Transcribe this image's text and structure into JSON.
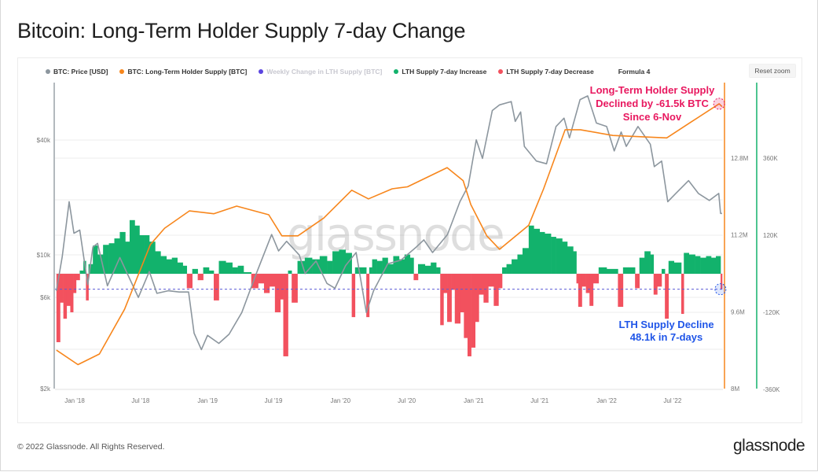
{
  "title": "Bitcoin: Long-Term Holder Supply 7-day Change",
  "legend": [
    {
      "label": "BTC: Price [USD]",
      "color": "#8c969e"
    },
    {
      "label": "BTC: Long-Term Holder Supply [BTC]",
      "color": "#f7861c"
    },
    {
      "label": "Weekly Change in LTH Supply [BTC]",
      "color": "#5b45e0",
      "hidden": true
    },
    {
      "label": "LTH Supply 7-day Increase",
      "color": "#12b26c"
    },
    {
      "label": "LTH Supply 7-day Decrease",
      "color": "#f2515e"
    },
    {
      "label": "Formula 4",
      "color": ""
    }
  ],
  "reset_zoom": "Reset zoom",
  "footer": "© 2022 Glassnode. All Rights Reserved.",
  "logo": "glassnode",
  "watermark": "glassnode",
  "chart_data": {
    "type": "line",
    "title": "Bitcoin: Long-Term Holder Supply 7-day Change",
    "x_ticks": [
      "Jan '18",
      "Jul '18",
      "Jan '19",
      "Jul '19",
      "Jan '20",
      "Jul '20",
      "Jan '21",
      "Jul '21",
      "Jan '22",
      "Jul '22"
    ],
    "x_tick_dates": [
      "2018-01-01",
      "2018-07-01",
      "2019-01-01",
      "2019-07-01",
      "2020-01-01",
      "2020-07-01",
      "2021-01-01",
      "2021-07-01",
      "2022-01-01",
      "2022-07-01"
    ],
    "xlim": [
      "2017-11-12",
      "2022-11-14"
    ],
    "y_price": {
      "scale": "log",
      "ticks": [
        "$2k",
        "$6k",
        "$10k",
        "$40k"
      ],
      "tick_values": [
        2000,
        6000,
        10000,
        40000
      ]
    },
    "y_supply": {
      "ticks": [
        "8M",
        "9.6M",
        "11.2M",
        "12.8M"
      ],
      "tick_values": [
        8,
        9.6,
        11.2,
        12.8
      ],
      "unit": "M"
    },
    "y_change": {
      "ticks": [
        "-360K",
        "-120K",
        "120K",
        "360K"
      ],
      "tick_values": [
        -360,
        -120,
        120,
        360
      ],
      "unit": "K"
    },
    "grid": true,
    "legend_position": "top",
    "series": [
      {
        "name": "BTC: Price [USD]",
        "axis": "price",
        "color": "#8c969e",
        "points": [
          [
            "2017-11-12",
            6500
          ],
          [
            "2017-11-28",
            9800
          ],
          [
            "2017-12-17",
            19000
          ],
          [
            "2017-12-30",
            13000
          ],
          [
            "2018-01-15",
            13500
          ],
          [
            "2018-02-06",
            7000
          ],
          [
            "2018-02-20",
            11000
          ],
          [
            "2018-03-05",
            11500
          ],
          [
            "2018-04-01",
            6900
          ],
          [
            "2018-05-05",
            9700
          ],
          [
            "2018-06-25",
            6000
          ],
          [
            "2018-07-25",
            8200
          ],
          [
            "2018-08-15",
            6300
          ],
          [
            "2018-09-15",
            6500
          ],
          [
            "2018-10-15",
            6400
          ],
          [
            "2018-11-10",
            6400
          ],
          [
            "2018-11-25",
            3900
          ],
          [
            "2018-12-15",
            3200
          ],
          [
            "2019-01-01",
            3800
          ],
          [
            "2019-02-01",
            3450
          ],
          [
            "2019-03-01",
            3850
          ],
          [
            "2019-04-05",
            5000
          ],
          [
            "2019-05-15",
            8000
          ],
          [
            "2019-06-26",
            12800
          ],
          [
            "2019-07-15",
            10500
          ],
          [
            "2019-08-06",
            11800
          ],
          [
            "2019-09-10",
            10000
          ],
          [
            "2019-09-26",
            8000
          ],
          [
            "2019-10-26",
            9300
          ],
          [
            "2019-11-25",
            7100
          ],
          [
            "2019-12-17",
            6700
          ],
          [
            "2020-01-15",
            8800
          ],
          [
            "2020-02-13",
            10300
          ],
          [
            "2020-03-12",
            5000
          ],
          [
            "2020-04-01",
            6500
          ],
          [
            "2020-05-10",
            9000
          ],
          [
            "2020-06-15",
            9400
          ],
          [
            "2020-07-27",
            11000
          ],
          [
            "2020-08-17",
            12000
          ],
          [
            "2020-09-10",
            10300
          ],
          [
            "2020-10-21",
            12800
          ],
          [
            "2020-11-24",
            19000
          ],
          [
            "2020-12-17",
            23000
          ],
          [
            "2021-01-08",
            40000
          ],
          [
            "2021-01-25",
            32000
          ],
          [
            "2021-02-21",
            57000
          ],
          [
            "2021-03-13",
            61000
          ],
          [
            "2021-04-14",
            63500
          ],
          [
            "2021-04-25",
            50000
          ],
          [
            "2021-05-10",
            56000
          ],
          [
            "2021-05-20",
            37000
          ],
          [
            "2021-06-22",
            31000
          ],
          [
            "2021-07-20",
            30000
          ],
          [
            "2021-08-15",
            47000
          ],
          [
            "2021-09-06",
            52000
          ],
          [
            "2021-09-21",
            41000
          ],
          [
            "2021-10-20",
            65000
          ],
          [
            "2021-11-10",
            68000
          ],
          [
            "2021-12-04",
            49000
          ],
          [
            "2022-01-01",
            47000
          ],
          [
            "2022-01-22",
            35000
          ],
          [
            "2022-02-10",
            44000
          ],
          [
            "2022-02-24",
            37000
          ],
          [
            "2022-03-28",
            47000
          ],
          [
            "2022-05-01",
            38000
          ],
          [
            "2022-05-12",
            29000
          ],
          [
            "2022-06-01",
            31000
          ],
          [
            "2022-06-18",
            19000
          ],
          [
            "2022-07-10",
            21000
          ],
          [
            "2022-08-14",
            24500
          ],
          [
            "2022-09-10",
            21000
          ],
          [
            "2022-10-10",
            19300
          ],
          [
            "2022-11-05",
            21000
          ],
          [
            "2022-11-10",
            16500
          ],
          [
            "2022-11-14",
            16500
          ]
        ]
      },
      {
        "name": "BTC: Long-Term Holder Supply [BTC]",
        "axis": "supply",
        "unit": "M",
        "color": "#f7861c",
        "points": [
          [
            "2017-11-12",
            8.8
          ],
          [
            "2018-01-10",
            8.5
          ],
          [
            "2018-03-10",
            8.72
          ],
          [
            "2018-05-18",
            9.65
          ],
          [
            "2018-07-28",
            11.0
          ],
          [
            "2018-09-05",
            11.34
          ],
          [
            "2018-11-12",
            11.7
          ],
          [
            "2019-01-18",
            11.64
          ],
          [
            "2019-03-22",
            11.8
          ],
          [
            "2019-06-18",
            11.62
          ],
          [
            "2019-07-24",
            11.18
          ],
          [
            "2019-09-06",
            11.18
          ],
          [
            "2019-11-16",
            11.55
          ],
          [
            "2020-02-01",
            12.13
          ],
          [
            "2020-03-18",
            11.95
          ],
          [
            "2020-05-22",
            12.16
          ],
          [
            "2020-07-03",
            12.2
          ],
          [
            "2020-10-20",
            12.6
          ],
          [
            "2020-12-03",
            12.33
          ],
          [
            "2020-12-24",
            11.83
          ],
          [
            "2021-02-06",
            11.18
          ],
          [
            "2021-03-13",
            10.9
          ],
          [
            "2021-06-01",
            11.4
          ],
          [
            "2021-07-12",
            12.16
          ],
          [
            "2021-09-09",
            13.39
          ],
          [
            "2021-10-21",
            13.39
          ],
          [
            "2022-01-18",
            13.27
          ],
          [
            "2022-06-15",
            13.22
          ],
          [
            "2022-08-21",
            13.55
          ],
          [
            "2022-11-06",
            13.93
          ],
          [
            "2022-11-14",
            13.87
          ]
        ]
      },
      {
        "name": "Weekly Change in LTH Supply [BTC]",
        "axis": "change",
        "unit": "K",
        "positive_color": "#12b26c",
        "negative_color": "#f2515e",
        "points": [
          [
            "2017-11-12",
            -213
          ],
          [
            "2017-11-22",
            -90
          ],
          [
            "2017-12-01",
            -140
          ],
          [
            "2017-12-10",
            -100
          ],
          [
            "2017-12-20",
            -120
          ],
          [
            "2017-12-28",
            -60
          ],
          [
            "2018-01-05",
            -20
          ],
          [
            "2018-01-15",
            10
          ],
          [
            "2018-01-25",
            40
          ],
          [
            "2018-02-01",
            -83
          ],
          [
            "2018-02-08",
            30
          ],
          [
            "2018-02-20",
            88
          ],
          [
            "2018-03-05",
            60
          ],
          [
            "2018-03-20",
            90
          ],
          [
            "2018-04-05",
            95
          ],
          [
            "2018-04-20",
            110
          ],
          [
            "2018-05-05",
            130
          ],
          [
            "2018-05-20",
            100
          ],
          [
            "2018-06-01",
            167
          ],
          [
            "2018-06-15",
            150
          ],
          [
            "2018-06-28",
            120
          ],
          [
            "2018-07-10",
            120
          ],
          [
            "2018-07-25",
            100
          ],
          [
            "2018-08-10",
            70
          ],
          [
            "2018-08-25",
            55
          ],
          [
            "2018-09-10",
            45
          ],
          [
            "2018-09-25",
            50
          ],
          [
            "2018-10-10",
            35
          ],
          [
            "2018-10-25",
            25
          ],
          [
            "2018-11-05",
            -45
          ],
          [
            "2018-11-20",
            15
          ],
          [
            "2018-12-05",
            -20
          ],
          [
            "2018-12-20",
            20
          ],
          [
            "2019-01-05",
            10
          ],
          [
            "2019-01-18",
            -83
          ],
          [
            "2019-02-01",
            40
          ],
          [
            "2019-02-20",
            35
          ],
          [
            "2019-03-10",
            20
          ],
          [
            "2019-03-25",
            25
          ],
          [
            "2019-04-10",
            5
          ],
          [
            "2019-05-01",
            -45
          ],
          [
            "2019-05-20",
            -30
          ],
          [
            "2019-06-05",
            -60
          ],
          [
            "2019-06-20",
            -40
          ],
          [
            "2019-07-05",
            -120
          ],
          [
            "2019-07-20",
            -80
          ],
          [
            "2019-07-28",
            -257
          ],
          [
            "2019-08-10",
            10
          ],
          [
            "2019-08-20",
            -90
          ],
          [
            "2019-09-05",
            40
          ],
          [
            "2019-09-25",
            50
          ],
          [
            "2019-10-15",
            45
          ],
          [
            "2019-11-05",
            55
          ],
          [
            "2019-11-25",
            40
          ],
          [
            "2019-12-10",
            70
          ],
          [
            "2019-12-28",
            75
          ],
          [
            "2020-01-15",
            65
          ],
          [
            "2020-02-01",
            -135
          ],
          [
            "2020-02-10",
            20
          ],
          [
            "2020-03-12",
            -135
          ],
          [
            "2020-03-20",
            20
          ],
          [
            "2020-03-28",
            45
          ],
          [
            "2020-04-10",
            40
          ],
          [
            "2020-04-25",
            50
          ],
          [
            "2020-05-10",
            30
          ],
          [
            "2020-05-25",
            55
          ],
          [
            "2020-06-10",
            45
          ],
          [
            "2020-06-25",
            60
          ],
          [
            "2020-07-10",
            50
          ],
          [
            "2020-07-20",
            -20
          ],
          [
            "2020-08-01",
            30
          ],
          [
            "2020-08-20",
            25
          ],
          [
            "2020-09-05",
            35
          ],
          [
            "2020-09-20",
            20
          ],
          [
            "2020-10-01",
            -160
          ],
          [
            "2020-10-10",
            -60
          ],
          [
            "2020-10-20",
            -150
          ],
          [
            "2020-11-01",
            -50
          ],
          [
            "2020-11-10",
            -155
          ],
          [
            "2020-11-25",
            -120
          ],
          [
            "2020-12-05",
            -200
          ],
          [
            "2020-12-15",
            -257
          ],
          [
            "2020-12-25",
            -230
          ],
          [
            "2021-01-05",
            -150
          ],
          [
            "2021-01-15",
            -65
          ],
          [
            "2021-01-28",
            -90
          ],
          [
            "2021-02-10",
            -40
          ],
          [
            "2021-02-25",
            -100
          ],
          [
            "2021-03-10",
            -45
          ],
          [
            "2021-03-20",
            20
          ],
          [
            "2021-04-01",
            30
          ],
          [
            "2021-04-15",
            45
          ],
          [
            "2021-05-01",
            60
          ],
          [
            "2021-05-15",
            80
          ],
          [
            "2021-06-01",
            150
          ],
          [
            "2021-06-15",
            140
          ],
          [
            "2021-07-01",
            130
          ],
          [
            "2021-07-15",
            125
          ],
          [
            "2021-08-01",
            115
          ],
          [
            "2021-08-15",
            110
          ],
          [
            "2021-09-01",
            100
          ],
          [
            "2021-09-15",
            85
          ],
          [
            "2021-10-01",
            70
          ],
          [
            "2021-10-10",
            -30
          ],
          [
            "2021-10-15",
            -103
          ],
          [
            "2021-10-25",
            -40
          ],
          [
            "2021-11-05",
            -60
          ],
          [
            "2021-11-15",
            -100
          ],
          [
            "2021-11-25",
            -30
          ],
          [
            "2021-12-10",
            20
          ],
          [
            "2022-01-01",
            15
          ],
          [
            "2022-02-01",
            -103
          ],
          [
            "2022-02-15",
            20
          ],
          [
            "2022-03-01",
            20
          ],
          [
            "2022-03-20",
            -45
          ],
          [
            "2022-04-01",
            50
          ],
          [
            "2022-04-15",
            70
          ],
          [
            "2022-05-01",
            60
          ],
          [
            "2022-05-10",
            -65
          ],
          [
            "2022-05-20",
            -40
          ],
          [
            "2022-06-01",
            15
          ],
          [
            "2022-06-10",
            -140
          ],
          [
            "2022-06-20",
            40
          ],
          [
            "2022-07-05",
            35
          ],
          [
            "2022-07-25",
            -125
          ],
          [
            "2022-08-01",
            65
          ],
          [
            "2022-08-15",
            60
          ],
          [
            "2022-09-01",
            55
          ],
          [
            "2022-09-15",
            50
          ],
          [
            "2022-10-01",
            55
          ],
          [
            "2022-10-15",
            50
          ],
          [
            "2022-10-28",
            55
          ],
          [
            "2022-11-10",
            -48.1
          ]
        ]
      }
    ],
    "reference_line": {
      "axis": "change",
      "value": -48.1,
      "color": "#5b5bd6",
      "style": "dashed"
    },
    "annotations": [
      {
        "lines": [
          "Long-Term Holder Supply",
          "Declined by -61.5k BTC",
          "Since 6-Nov"
        ],
        "color": "#e8185f",
        "marker": [
          "2022-11-06",
          13.93
        ]
      },
      {
        "lines": [
          "LTH Supply Decline",
          "48.1k in 7-days"
        ],
        "color": "#1f55e8",
        "marker": [
          "2022-11-14",
          -48.1
        ]
      }
    ]
  }
}
